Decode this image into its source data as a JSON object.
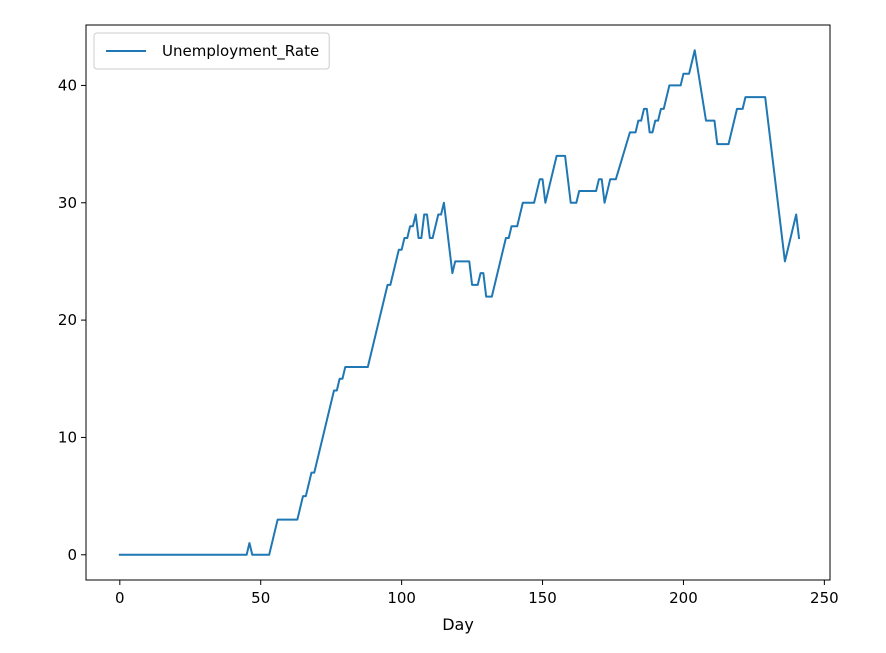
{
  "chart_data": {
    "type": "line",
    "title": "",
    "xlabel": "Day",
    "ylabel": "",
    "xlim": [
      -12,
      252
    ],
    "ylim": [
      -2.15,
      45.15
    ],
    "xticks": [
      0,
      50,
      100,
      150,
      200,
      250
    ],
    "yticks": [
      0,
      10,
      20,
      30,
      40
    ],
    "grid": false,
    "legend_position": "top-left",
    "series": [
      {
        "name": "Unemployment_Rate",
        "color": "#1f77b4",
        "points": [
          [
            0,
            0
          ],
          [
            45,
            0
          ],
          [
            46,
            1
          ],
          [
            47,
            0
          ],
          [
            53,
            0
          ],
          [
            56,
            3
          ],
          [
            63,
            3
          ],
          [
            65,
            5
          ],
          [
            66,
            5
          ],
          [
            68,
            7
          ],
          [
            69,
            7
          ],
          [
            76,
            14
          ],
          [
            77,
            14
          ],
          [
            78,
            15
          ],
          [
            79,
            15
          ],
          [
            80,
            16
          ],
          [
            88,
            16
          ],
          [
            95,
            23
          ],
          [
            96,
            23
          ],
          [
            99,
            26
          ],
          [
            100,
            26
          ],
          [
            101,
            27
          ],
          [
            102,
            27
          ],
          [
            103,
            28
          ],
          [
            104,
            28
          ],
          [
            105,
            29
          ],
          [
            106,
            27
          ],
          [
            107,
            27
          ],
          [
            108,
            29
          ],
          [
            109,
            29
          ],
          [
            110,
            27
          ],
          [
            111,
            27
          ],
          [
            113,
            29
          ],
          [
            114,
            29
          ],
          [
            115,
            30
          ],
          [
            116,
            28
          ],
          [
            118,
            24
          ],
          [
            119,
            25
          ],
          [
            124,
            25
          ],
          [
            125,
            23
          ],
          [
            127,
            23
          ],
          [
            128,
            24
          ],
          [
            129,
            24
          ],
          [
            130,
            22
          ],
          [
            132,
            22
          ],
          [
            137,
            27
          ],
          [
            138,
            27
          ],
          [
            139,
            28
          ],
          [
            141,
            28
          ],
          [
            143,
            30
          ],
          [
            147,
            30
          ],
          [
            149,
            32
          ],
          [
            150,
            32
          ],
          [
            151,
            30
          ],
          [
            155,
            34
          ],
          [
            158,
            34
          ],
          [
            160,
            30
          ],
          [
            162,
            30
          ],
          [
            163,
            31
          ],
          [
            169,
            31
          ],
          [
            170,
            32
          ],
          [
            171,
            32
          ],
          [
            172,
            30
          ],
          [
            174,
            32
          ],
          [
            176,
            32
          ],
          [
            181,
            36
          ],
          [
            183,
            36
          ],
          [
            184,
            37
          ],
          [
            185,
            37
          ],
          [
            186,
            38
          ],
          [
            187,
            38
          ],
          [
            188,
            36
          ],
          [
            189,
            36
          ],
          [
            190,
            37
          ],
          [
            191,
            37
          ],
          [
            192,
            38
          ],
          [
            193,
            38
          ],
          [
            195,
            40
          ],
          [
            199,
            40
          ],
          [
            200,
            41
          ],
          [
            202,
            41
          ],
          [
            203,
            42
          ],
          [
            204,
            43
          ],
          [
            208,
            37
          ],
          [
            211,
            37
          ],
          [
            212,
            35
          ],
          [
            216,
            35
          ],
          [
            219,
            38
          ],
          [
            221,
            38
          ],
          [
            222,
            39
          ],
          [
            229,
            39
          ],
          [
            236,
            25
          ],
          [
            240,
            29
          ],
          [
            241,
            27
          ]
        ]
      }
    ]
  }
}
